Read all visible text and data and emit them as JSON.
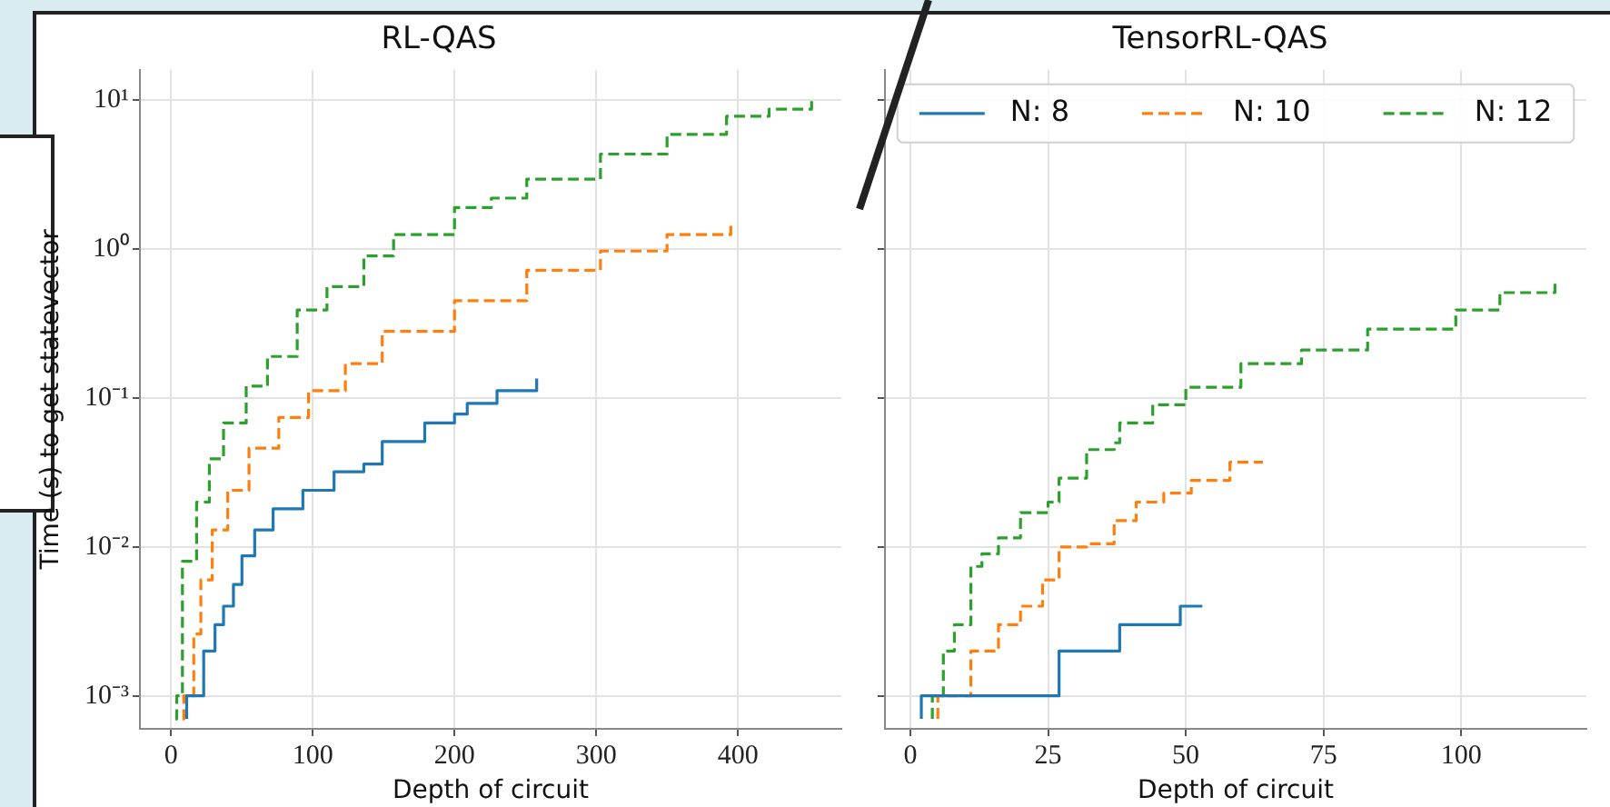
{
  "chart_data": [
    {
      "type": "step",
      "title": "RL-QAS",
      "xlabel": "Depth of circuit",
      "ylabel": "Time (s) to get statevector",
      "log": "y",
      "grid": true,
      "xlim": [
        -22,
        473
      ],
      "xticks": [
        0,
        100,
        200,
        300,
        400
      ],
      "ylim": [
        0.00064,
        16
      ],
      "yticks": [
        {
          "value": 0.001,
          "label": "10⁻³"
        },
        {
          "value": 0.01,
          "label": "10⁻²"
        },
        {
          "value": 0.1,
          "label": "10⁻¹"
        },
        {
          "value": 1,
          "label": "10⁰"
        },
        {
          "value": 10,
          "label": "10¹"
        }
      ],
      "series": [
        {
          "color": "#1f77b4",
          "line_style": "solid",
          "x": [
            11,
            11,
            23,
            31,
            37,
            44,
            50,
            59,
            72,
            93,
            115,
            136,
            149,
            179,
            200,
            209,
            230,
            258
          ],
          "values": [
            0.0007,
            0.001,
            0.002,
            0.003,
            0.004,
            0.0056,
            0.0087,
            0.013,
            0.018,
            0.024,
            0.032,
            0.036,
            0.051,
            0.068,
            0.078,
            0.092,
            0.112,
            0.135
          ]
        },
        {
          "color": "#ff7f0e",
          "line_style": "dashed",
          "x": [
            8,
            9,
            16,
            21,
            29,
            40,
            55,
            76,
            97,
            123,
            149,
            200,
            251,
            303,
            350,
            395
          ],
          "values": [
            0.0007,
            0.001,
            0.0026,
            0.006,
            0.013,
            0.024,
            0.046,
            0.074,
            0.112,
            0.17,
            0.28,
            0.45,
            0.72,
            0.97,
            1.25,
            1.47
          ]
        },
        {
          "color": "#2ca02c",
          "line_style": "dashed",
          "x": [
            3,
            4,
            8,
            18,
            27,
            37,
            53,
            68,
            89,
            110,
            136,
            157,
            200,
            226,
            251,
            303,
            350,
            392,
            422,
            452
          ],
          "values": [
            0.0007,
            0.001,
            0.008,
            0.02,
            0.039,
            0.068,
            0.12,
            0.19,
            0.39,
            0.56,
            0.9,
            1.25,
            1.9,
            2.2,
            2.95,
            4.35,
            5.9,
            7.8,
            8.7,
            10
          ]
        }
      ]
    },
    {
      "type": "step",
      "title": "TensorRL-QAS",
      "xlabel": "Depth of circuit",
      "log": "y",
      "grid": true,
      "legend": "top",
      "tick_labels": "x",
      "xlim": [
        -4.6,
        122.7
      ],
      "xticks": [
        0,
        25,
        50,
        75,
        100
      ],
      "ylim": [
        0.00064,
        16
      ],
      "yticks": [
        {
          "value": 0.001,
          "label": null
        },
        {
          "value": 0.01,
          "label": null
        },
        {
          "value": 0.1,
          "label": null
        },
        {
          "value": 1,
          "label": null
        },
        {
          "value": 10,
          "label": null
        }
      ],
      "series": [
        {
          "name": "N: 8",
          "color": "#1f77b4",
          "line_style": "solid",
          "x": [
            2,
            2,
            27,
            38,
            49,
            53
          ],
          "values": [
            0.0007,
            0.001,
            0.002,
            0.003,
            0.004,
            0.004
          ]
        },
        {
          "name": "N: 10",
          "color": "#ff7f0e",
          "line_style": "dashed",
          "x": [
            5,
            5,
            11,
            16,
            20,
            24,
            27,
            32,
            37,
            41,
            46,
            51,
            58,
            64
          ],
          "values": [
            0.0007,
            0.001,
            0.002,
            0.003,
            0.004,
            0.006,
            0.01,
            0.0105,
            0.015,
            0.02,
            0.023,
            0.028,
            0.037,
            0.037
          ]
        },
        {
          "name": "N: 12",
          "color": "#2ca02c",
          "line_style": "dashed",
          "x": [
            4,
            4,
            6,
            8,
            11,
            13,
            16,
            20,
            25,
            27,
            32,
            37,
            38,
            44,
            50,
            60,
            71,
            83,
            99,
            107,
            117
          ],
          "values": [
            0.0007,
            0.001,
            0.002,
            0.003,
            0.0074,
            0.009,
            0.0115,
            0.017,
            0.02,
            0.029,
            0.045,
            0.05,
            0.068,
            0.09,
            0.118,
            0.17,
            0.21,
            0.29,
            0.39,
            0.51,
            0.6
          ]
        }
      ]
    }
  ]
}
